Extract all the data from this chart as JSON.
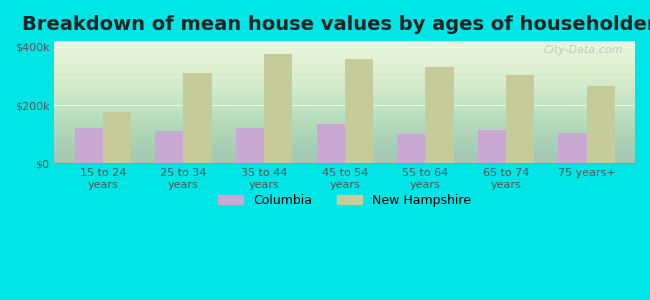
{
  "title": "Breakdown of mean house values by ages of householders",
  "categories": [
    "15 to 24\nyears",
    "25 to 34\nyears",
    "35 to 44\nyears",
    "45 to 54\nyears",
    "55 to 64\nyears",
    "65 to 74\nyears",
    "75 years+"
  ],
  "columbia_values": [
    120000,
    110000,
    120000,
    135000,
    100000,
    115000,
    105000
  ],
  "nh_values": [
    175000,
    310000,
    375000,
    360000,
    330000,
    305000,
    265000
  ],
  "columbia_color": "#c9a8d4",
  "nh_color": "#c5cc9a",
  "background_color": "#00e5e5",
  "yticks": [
    0,
    200000,
    400000
  ],
  "ytick_labels": [
    "$0",
    "$200k",
    "$400k"
  ],
  "ylim": [
    0,
    420000
  ],
  "title_fontsize": 14,
  "legend_labels": [
    "Columbia",
    "New Hampshire"
  ],
  "watermark": "City-Data.com"
}
